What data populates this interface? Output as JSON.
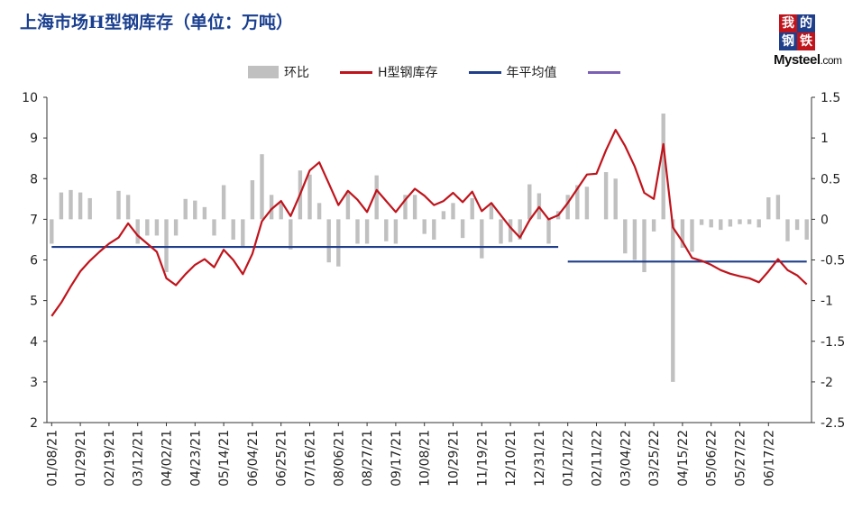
{
  "title": "上海市场H型钢库存（单位：万吨）",
  "logo": {
    "line1a": "我",
    "line1b": "的",
    "line2a": "钢",
    "line2b": "铁",
    "brand": "Mysteel",
    "suffix": ".com"
  },
  "legend": [
    {
      "label": "环比",
      "type": "bar",
      "color": "#c0c0c0"
    },
    {
      "label": "H型钢库存",
      "type": "line",
      "color": "#c0141c"
    },
    {
      "label": "年平均值",
      "type": "line",
      "color": "#1f3f8a"
    },
    {
      "label": "",
      "type": "line",
      "color": "#7b5fb5"
    }
  ],
  "chart_data": {
    "type": "bar+line",
    "x_tick_labels": [
      "01/08/21",
      "01/29/21",
      "02/19/21",
      "03/12/21",
      "04/02/21",
      "04/23/21",
      "05/14/21",
      "06/04/21",
      "06/25/21",
      "07/16/21",
      "08/06/21",
      "08/27/21",
      "09/17/21",
      "10/08/21",
      "10/29/21",
      "11/19/21",
      "12/10/21",
      "12/31/21",
      "01/21/22",
      "02/11/22",
      "03/04/22",
      "03/25/22",
      "04/15/22",
      "05/06/22",
      "05/27/22",
      "06/17/22"
    ],
    "y_left": {
      "min": 2,
      "max": 10,
      "ticks": [
        2,
        3,
        4,
        5,
        6,
        7,
        8,
        9,
        10
      ]
    },
    "y_right": {
      "min": -2.5,
      "max": 1.5,
      "ticks": [
        "-2.5",
        "-2",
        "-1.5",
        "-1",
        "-0.5",
        "0",
        "0.5",
        "1",
        "1.5"
      ]
    },
    "series": [
      {
        "name": "H型钢库存",
        "axis": "left",
        "kind": "line",
        "color": "#c0141c",
        "values": [
          4.62,
          4.95,
          5.35,
          5.72,
          5.98,
          6.2,
          6.4,
          6.55,
          6.9,
          6.6,
          6.4,
          6.2,
          5.55,
          5.38,
          5.65,
          5.88,
          6.02,
          5.82,
          6.25,
          6.0,
          5.65,
          6.15,
          6.95,
          7.25,
          7.45,
          7.08,
          7.62,
          8.2,
          8.4,
          7.88,
          7.35,
          7.7,
          7.48,
          7.18,
          7.72,
          7.45,
          7.18,
          7.48,
          7.75,
          7.58,
          7.35,
          7.45,
          7.65,
          7.42,
          7.68,
          7.2,
          7.4,
          7.1,
          6.8,
          6.55,
          6.98,
          7.3,
          7.0,
          7.1,
          7.4,
          7.75,
          8.1,
          8.12,
          8.7,
          9.2,
          8.8,
          8.3,
          7.65,
          7.5,
          8.85,
          6.8,
          6.45,
          6.05,
          5.98,
          5.88,
          5.75,
          5.66,
          5.6,
          5.55,
          5.45,
          5.72,
          6.02,
          5.75,
          5.62,
          5.4
        ]
      },
      {
        "name": "年平均值",
        "axis": "left",
        "kind": "segments",
        "color": "#1f3f8a",
        "segments": [
          {
            "from_index": 0,
            "to_index": 53,
            "value": 6.32
          },
          {
            "from_index": 54,
            "to_index": 79,
            "value": 5.96
          }
        ]
      },
      {
        "name": "环比",
        "axis": "right",
        "kind": "bar",
        "color": "#c0c0c0",
        "values": [
          -0.3,
          0.33,
          0.36,
          0.33,
          0.26,
          0.0,
          0.0,
          0.35,
          0.3,
          -0.3,
          -0.2,
          -0.2,
          -0.65,
          -0.2,
          0.25,
          0.23,
          0.15,
          -0.2,
          0.42,
          -0.25,
          -0.35,
          0.48,
          0.8,
          0.3,
          0.2,
          -0.37,
          0.6,
          0.55,
          0.2,
          -0.53,
          -0.58,
          0.35,
          -0.3,
          -0.3,
          0.54,
          -0.27,
          -0.3,
          0.3,
          0.3,
          -0.18,
          -0.25,
          0.1,
          0.2,
          -0.23,
          0.26,
          -0.48,
          0.2,
          -0.3,
          -0.28,
          -0.25,
          0.43,
          0.32,
          -0.3,
          0.1,
          0.3,
          0.42,
          0.4,
          0.0,
          0.58,
          0.5,
          -0.42,
          -0.5,
          -0.65,
          -0.15,
          1.3,
          -2.0,
          -0.35,
          -0.4,
          -0.07,
          -0.1,
          -0.13,
          -0.09,
          -0.06,
          -0.06,
          -0.1,
          0.27,
          0.3,
          -0.27,
          -0.13,
          -0.25
        ]
      }
    ],
    "grid": false
  }
}
